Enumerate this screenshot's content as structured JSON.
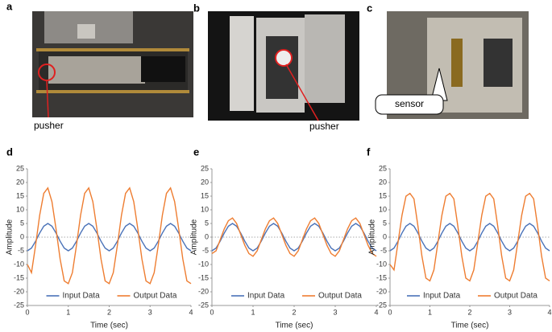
{
  "panels": [
    "a",
    "b",
    "c",
    "d",
    "e",
    "f"
  ],
  "photo_labels": [
    "pusher",
    "pusher",
    "sensor"
  ],
  "chart_data": [
    {
      "type": "line",
      "xlabel": "Time (sec)",
      "ylabel": "Amplitude",
      "xlim": [
        0,
        4
      ],
      "ylim": [
        -25,
        25
      ],
      "xticks": [
        0,
        1,
        2,
        3,
        4
      ],
      "yticks": [
        -25,
        -20,
        -15,
        -10,
        -5,
        0,
        5,
        10,
        15,
        20,
        25
      ],
      "zero_line": true,
      "legend": "bottom",
      "x": [
        0,
        0.1,
        0.2,
        0.3,
        0.4,
        0.5,
        0.6,
        0.7,
        0.8,
        0.9,
        1,
        1.1,
        1.2,
        1.3,
        1.4,
        1.5,
        1.6,
        1.7,
        1.8,
        1.9,
        2,
        2.1,
        2.2,
        2.3,
        2.4,
        2.5,
        2.6,
        2.7,
        2.8,
        2.9,
        3,
        3.1,
        3.2,
        3.3,
        3.4,
        3.5,
        3.6,
        3.7,
        3.8,
        3.9,
        4
      ],
      "series": [
        {
          "name": "Input Data",
          "color": "#4a72b8",
          "values": [
            -5,
            -4,
            -1.5,
            1.5,
            4,
            5,
            4,
            1.5,
            -1.5,
            -4,
            -5,
            -4,
            -1.5,
            1.5,
            4,
            5,
            4,
            1.5,
            -1.5,
            -4,
            -5,
            -4,
            -1.5,
            1.5,
            4,
            5,
            4,
            1.5,
            -1.5,
            -4,
            -5,
            -4,
            -1.5,
            1.5,
            4,
            5,
            4,
            1.5,
            -1.5,
            -4,
            -5
          ]
        },
        {
          "name": "Output Data",
          "color": "#ee7d31",
          "values": [
            -10,
            -13,
            -3,
            8,
            16,
            18,
            13,
            3,
            -8,
            -16,
            -17,
            -13,
            -3,
            8,
            16,
            18,
            13,
            3,
            -8,
            -16,
            -17,
            -13,
            -3,
            8,
            16,
            18,
            13,
            3,
            -8,
            -16,
            -17,
            -13,
            -3,
            8,
            16,
            18,
            13,
            3,
            -8,
            -16,
            -17
          ]
        }
      ]
    },
    {
      "type": "line",
      "xlabel": "Time (sec)",
      "ylabel": "Amplitude",
      "xlim": [
        0,
        4
      ],
      "ylim": [
        -25,
        25
      ],
      "xticks": [
        0,
        1,
        2,
        3,
        4
      ],
      "yticks": [
        -25,
        -20,
        -15,
        -10,
        -5,
        0,
        5,
        10,
        15,
        20,
        25
      ],
      "zero_line": true,
      "legend": "bottom",
      "x": [
        0,
        0.1,
        0.2,
        0.3,
        0.4,
        0.5,
        0.6,
        0.7,
        0.8,
        0.9,
        1,
        1.1,
        1.2,
        1.3,
        1.4,
        1.5,
        1.6,
        1.7,
        1.8,
        1.9,
        2,
        2.1,
        2.2,
        2.3,
        2.4,
        2.5,
        2.6,
        2.7,
        2.8,
        2.9,
        3,
        3.1,
        3.2,
        3.3,
        3.4,
        3.5,
        3.6,
        3.7,
        3.8,
        3.9,
        4
      ],
      "series": [
        {
          "name": "Input Data",
          "color": "#4a72b8",
          "values": [
            -5,
            -4,
            -1.5,
            1.5,
            4,
            5,
            4,
            1.5,
            -1.5,
            -4,
            -5,
            -4,
            -1.5,
            1.5,
            4,
            5,
            4,
            1.5,
            -1.5,
            -4,
            -5,
            -4,
            -1.5,
            1.5,
            4,
            5,
            4,
            1.5,
            -1.5,
            -4,
            -5,
            -4,
            -1.5,
            1.5,
            4,
            5,
            4,
            1.5,
            -1.5,
            -4,
            -5
          ]
        },
        {
          "name": "Output Data",
          "color": "#ee7d31",
          "values": [
            -6,
            -5,
            -1,
            3,
            6,
            7,
            5,
            1,
            -3,
            -6,
            -7,
            -5,
            -1,
            3,
            6,
            7,
            5,
            1,
            -3,
            -6,
            -7,
            -5,
            -1,
            3,
            6,
            7,
            5,
            1,
            -3,
            -6,
            -7,
            -5,
            -1,
            3,
            6,
            7,
            5,
            1,
            -3,
            -6,
            -7
          ]
        }
      ]
    },
    {
      "type": "line",
      "xlabel": "Time (sec)",
      "ylabel": "Amplitude",
      "xlim": [
        0,
        4
      ],
      "ylim": [
        -25,
        25
      ],
      "xticks": [
        0,
        1,
        2,
        3,
        4
      ],
      "yticks": [
        -25,
        -20,
        -15,
        -10,
        -5,
        0,
        5,
        10,
        15,
        20,
        25
      ],
      "zero_line": true,
      "legend": "bottom",
      "x": [
        0,
        0.1,
        0.2,
        0.3,
        0.4,
        0.5,
        0.6,
        0.7,
        0.8,
        0.9,
        1,
        1.1,
        1.2,
        1.3,
        1.4,
        1.5,
        1.6,
        1.7,
        1.8,
        1.9,
        2,
        2.1,
        2.2,
        2.3,
        2.4,
        2.5,
        2.6,
        2.7,
        2.8,
        2.9,
        3,
        3.1,
        3.2,
        3.3,
        3.4,
        3.5,
        3.6,
        3.7,
        3.8,
        3.9,
        4
      ],
      "series": [
        {
          "name": "Input Data",
          "color": "#4a72b8",
          "values": [
            -5,
            -4,
            -1.5,
            1.5,
            4,
            5,
            4,
            1.5,
            -1.5,
            -4,
            -5,
            -4,
            -1.5,
            1.5,
            4,
            5,
            4,
            1.5,
            -1.5,
            -4,
            -5,
            -4,
            -1.5,
            1.5,
            4,
            5,
            4,
            1.5,
            -1.5,
            -4,
            -5,
            -4,
            -1.5,
            1.5,
            4,
            5,
            4,
            1.5,
            -1.5,
            -4,
            -5
          ]
        },
        {
          "name": "Output Data",
          "color": "#ee7d31",
          "values": [
            -10,
            -12,
            -2,
            8,
            15,
            16,
            14,
            4,
            -7,
            -15,
            -16,
            -12,
            -2,
            8,
            15,
            16,
            14,
            4,
            -7,
            -15,
            -16,
            -12,
            -2,
            8,
            15,
            16,
            14,
            4,
            -7,
            -15,
            -16,
            -12,
            -2,
            8,
            15,
            16,
            14,
            4,
            -7,
            -15,
            -16
          ]
        }
      ]
    }
  ]
}
